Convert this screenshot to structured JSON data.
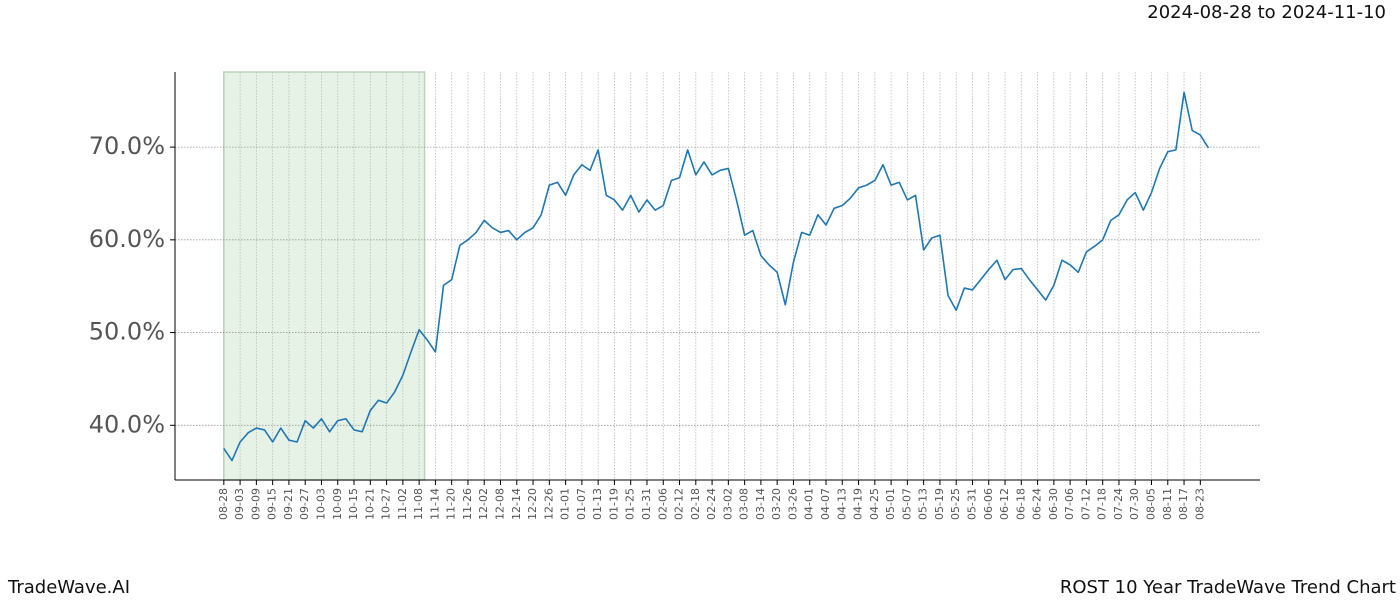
{
  "brand": "TradeWave.AI",
  "chart_data": {
    "type": "line",
    "title": "ROST 10 Year TradeWave Trend Chart",
    "subtitle": "2024-08-28 to 2024-11-10",
    "x": [
      "08-28",
      "08-31",
      "09-03",
      "09-06",
      "09-09",
      "09-12",
      "09-15",
      "09-18",
      "09-21",
      "09-24",
      "09-27",
      "09-30",
      "10-03",
      "10-06",
      "10-09",
      "10-12",
      "10-15",
      "10-18",
      "10-21",
      "10-24",
      "10-27",
      "10-30",
      "11-02",
      "11-05",
      "11-08",
      "11-11",
      "11-14",
      "11-17",
      "11-20",
      "11-23",
      "11-26",
      "11-29",
      "12-02",
      "12-05",
      "12-08",
      "12-11",
      "12-14",
      "12-17",
      "12-20",
      "12-23",
      "12-26",
      "12-29",
      "01-01",
      "01-04",
      "01-07",
      "01-10",
      "01-13",
      "01-16",
      "01-19",
      "01-22",
      "01-25",
      "01-28",
      "01-31",
      "02-03",
      "02-06",
      "02-09",
      "02-12",
      "02-15",
      "02-18",
      "02-21",
      "02-24",
      "02-27",
      "03-02",
      "03-05",
      "03-08",
      "03-11",
      "03-14",
      "03-17",
      "03-20",
      "03-23",
      "03-26",
      "03-29",
      "04-01",
      "04-04",
      "04-07",
      "04-10",
      "04-13",
      "04-16",
      "04-19",
      "04-22",
      "04-25",
      "04-28",
      "05-01",
      "05-04",
      "05-07",
      "05-10",
      "05-13",
      "05-16",
      "05-19",
      "05-22",
      "05-25",
      "05-28",
      "05-31",
      "06-03",
      "06-06",
      "06-09",
      "06-12",
      "06-15",
      "06-18",
      "06-21",
      "06-24",
      "06-27",
      "06-30",
      "07-03",
      "07-06",
      "07-09",
      "07-12",
      "07-15",
      "07-18",
      "07-21",
      "07-24",
      "07-27",
      "07-30",
      "08-02",
      "08-05",
      "08-08",
      "08-11",
      "08-14",
      "08-17",
      "08-20",
      "08-23",
      "08-26"
    ],
    "series": [
      {
        "color": "#1f77b4",
        "values": [
          37.5,
          36.2,
          38.2,
          39.2,
          39.7,
          39.5,
          38.2,
          39.7,
          38.4,
          38.2,
          40.5,
          39.7,
          40.7,
          39.3,
          40.5,
          40.7,
          39.5,
          39.3,
          41.6,
          42.7,
          42.4,
          43.6,
          45.4,
          47.9,
          50.3,
          49.2,
          47.9,
          55.1,
          55.7,
          59.4,
          60.0,
          60.8,
          62.1,
          61.3,
          60.8,
          61.0,
          60.0,
          60.8,
          61.3,
          62.7,
          65.9,
          66.2,
          64.8,
          67.0,
          68.1,
          67.5,
          69.7,
          64.8,
          64.3,
          63.2,
          64.8,
          63.0,
          64.3,
          63.2,
          63.7,
          66.4,
          66.7,
          69.7,
          67.0,
          68.4,
          67.0,
          67.5,
          67.7,
          64.3,
          60.5,
          61.0,
          58.3,
          57.3,
          56.5,
          53.0,
          57.6,
          60.8,
          60.5,
          62.7,
          61.6,
          63.4,
          63.7,
          64.5,
          65.6,
          65.9,
          66.4,
          68.1,
          65.9,
          66.2,
          64.3,
          64.8,
          58.9,
          60.2,
          60.5,
          54.0,
          52.4,
          54.8,
          54.6,
          55.7,
          56.8,
          57.8,
          55.7,
          56.8,
          56.9,
          55.7,
          54.6,
          53.5,
          55.1,
          57.8,
          57.3,
          56.5,
          58.7,
          59.3,
          60.0,
          62.1,
          62.7,
          64.3,
          65.1,
          63.2,
          65.1,
          67.7,
          69.5,
          69.7,
          75.9,
          71.8,
          71.3,
          69.9
        ]
      }
    ],
    "xlim": [
      "08-10",
      "09-14"
    ],
    "xticks": [
      "08-28",
      "09-03",
      "09-09",
      "09-15",
      "09-21",
      "09-27",
      "10-03",
      "10-09",
      "10-15",
      "10-21",
      "10-27",
      "11-02",
      "11-08",
      "11-14",
      "11-20",
      "11-26",
      "12-02",
      "12-08",
      "12-14",
      "12-20",
      "12-26",
      "01-01",
      "01-07",
      "01-13",
      "01-19",
      "01-25",
      "01-31",
      "02-06",
      "02-12",
      "02-18",
      "02-24",
      "03-02",
      "03-08",
      "03-14",
      "03-20",
      "03-26",
      "04-01",
      "04-07",
      "04-13",
      "04-19",
      "04-25",
      "05-01",
      "05-07",
      "05-13",
      "05-19",
      "05-25",
      "05-31",
      "06-06",
      "06-12",
      "06-18",
      "06-24",
      "06-30",
      "07-06",
      "07-12",
      "07-18",
      "07-24",
      "07-30",
      "08-05",
      "08-11",
      "08-17",
      "08-23"
    ],
    "ylim": [
      34.1,
      78.1
    ],
    "yticks": [
      {
        "value": 40,
        "label": "40.0%"
      },
      {
        "value": 50,
        "label": "50.0%"
      },
      {
        "value": 60,
        "label": "60.0%"
      },
      {
        "value": 70,
        "label": "70.0%"
      }
    ],
    "grid": true,
    "shade": {
      "x": [
        "08-28",
        "11-10"
      ],
      "color": "#e6f2e6"
    }
  }
}
